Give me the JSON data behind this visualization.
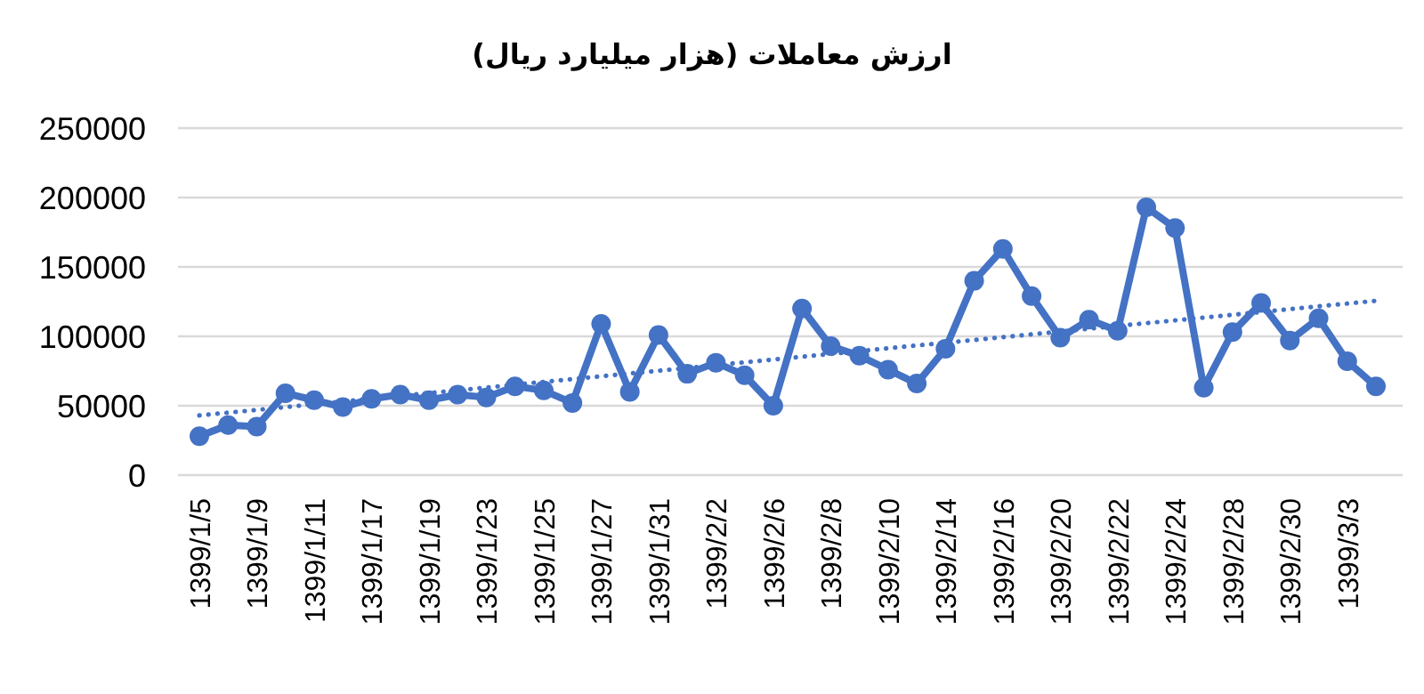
{
  "chart_data": {
    "type": "line",
    "title": "ارزش معاملات (هزار میلیارد ریال)",
    "categories": [
      "1399/1/5",
      null,
      "1399/1/9",
      null,
      "1399/1/11",
      null,
      "1399/1/17",
      null,
      "1399/1/19",
      null,
      "1399/1/23",
      null,
      "1399/1/25",
      null,
      "1399/1/27",
      null,
      "1399/1/31",
      null,
      "1399/2/2",
      null,
      "1399/2/6",
      null,
      "1399/2/8",
      null,
      "1399/2/10",
      null,
      "1399/2/14",
      null,
      "1399/2/16",
      null,
      "1399/2/20",
      null,
      "1399/2/22",
      null,
      "1399/2/24",
      null,
      "1399/2/28",
      null,
      "1399/2/30",
      null,
      "1399/3/3",
      null
    ],
    "ylim": [
      0,
      250000
    ],
    "yticks": [
      0,
      50000,
      100000,
      150000,
      200000,
      250000
    ],
    "grid": "y",
    "series": [
      {
        "color": "#4472c4",
        "marker": "circle",
        "line_style": "solid",
        "values": [
          28000,
          36000,
          35000,
          59000,
          54000,
          49000,
          55000,
          58000,
          54000,
          58000,
          56000,
          64000,
          61000,
          52000,
          109000,
          60000,
          101000,
          73000,
          81000,
          72000,
          50000,
          120000,
          93000,
          86000,
          76000,
          66000,
          91000,
          140000,
          163000,
          129000,
          99000,
          112000,
          104000,
          193000,
          178000,
          63000,
          103000,
          124000,
          97000,
          113000,
          82000,
          64000
        ]
      },
      {
        "type": "line",
        "color": "#4472c4",
        "marker": "none",
        "line_style": "dotted",
        "values": [
          43000,
          45000,
          47000,
          49000,
          51100,
          53100,
          55100,
          57100,
          59100,
          61100,
          63100,
          65200,
          67200,
          69200,
          71200,
          73200,
          75200,
          77200,
          79300,
          81300,
          83300,
          85300,
          87300,
          89300,
          91400,
          93400,
          95400,
          97400,
          99400,
          101400,
          103400,
          105500,
          107500,
          109500,
          111500,
          113500,
          115500,
          117500,
          119600,
          121600,
          123600,
          125600
        ]
      }
    ]
  }
}
